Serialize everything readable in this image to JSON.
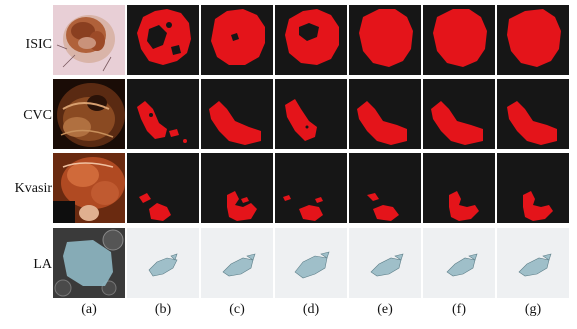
{
  "rows": [
    {
      "label": "ISIC"
    },
    {
      "label": "CVC"
    },
    {
      "label": "Kvasir"
    },
    {
      "label": "LA"
    }
  ],
  "columns": [
    "(a)",
    "(b)",
    "(c)",
    "(d)",
    "(e)",
    "(f)",
    "(g)"
  ],
  "colors": {
    "mask_fill": "#e4141a",
    "mask_background": "#161616",
    "la_background": "#eef0f2",
    "la_shape": "#9fbfc9"
  }
}
